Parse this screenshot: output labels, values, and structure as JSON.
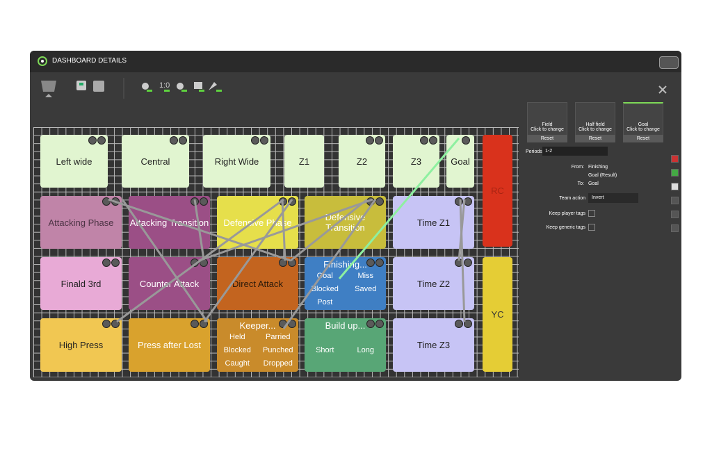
{
  "header": {
    "title": "DASHBOARD DETAILS"
  },
  "toolbar": {
    "score_icon": "1:0"
  },
  "tiles": [
    {
      "label": "Left wide"
    },
    {
      "label": "Central"
    },
    {
      "label": "Right Wide"
    },
    {
      "label": "Z1"
    },
    {
      "label": "Z2"
    },
    {
      "label": "Z3"
    },
    {
      "label": "Goal"
    },
    {
      "label": "RC"
    },
    {
      "label": "Attacking Phase"
    },
    {
      "label": "Attacking Transition"
    },
    {
      "label": "Defensive Phase"
    },
    {
      "label": "Defensive Transition"
    },
    {
      "label": "Time Z1"
    },
    {
      "label": "Finald 3rd"
    },
    {
      "label": "Counter Attack"
    },
    {
      "label": "Direct Attack"
    },
    {
      "label": "Finishing...",
      "subs": [
        "Goal",
        "Miss",
        "Blocked",
        "Saved",
        "Post"
      ]
    },
    {
      "label": "Time Z2"
    },
    {
      "label": "YC"
    },
    {
      "label": "High Press"
    },
    {
      "label": "Press after Lost"
    },
    {
      "label": "Keeper...",
      "subs": [
        "Held",
        "Parried",
        "Blocked",
        "Punched",
        "Caught",
        "Dropped"
      ]
    },
    {
      "label": "Build up...",
      "subs": [
        "Short",
        "Long"
      ]
    },
    {
      "label": "Time Z3"
    }
  ],
  "panel": {
    "backgrounds": [
      {
        "name": "Field",
        "hint": "Click to change",
        "button": "Reset"
      },
      {
        "name": "Half field",
        "hint": "Click to change",
        "button": "Reset"
      },
      {
        "name": "Goal",
        "hint": "Click to change",
        "button": "Reset"
      }
    ],
    "periods_label": "Periods",
    "periods_value": "1-2",
    "from_label": "From:",
    "from_value": "Finishing",
    "from_result": "Goal (Result)",
    "to_label": "To:",
    "to_value": "Goal",
    "team_action_label": "Team action",
    "team_action_value": "Invert",
    "keep_player_tags": "Keep player tags",
    "keep_generic_tags": "Keep generic tags"
  }
}
